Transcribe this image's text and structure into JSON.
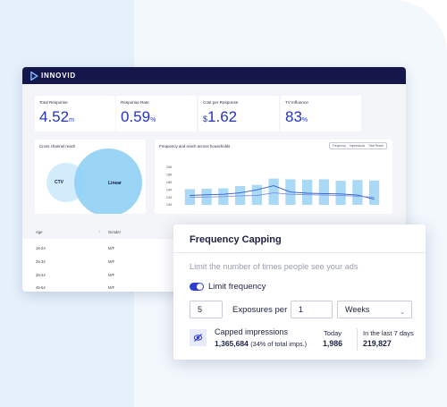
{
  "app": {
    "brand": "INNOVID"
  },
  "kpis": [
    {
      "label": "Total Response",
      "prefix": "",
      "value": "4.52",
      "suffix": "m"
    },
    {
      "label": "Response Rate",
      "prefix": "",
      "value": "0.59",
      "suffix": "%"
    },
    {
      "label": "Cost per Response",
      "prefix": "$",
      "value": "1.62",
      "suffix": ""
    },
    {
      "label": "TV Influence",
      "prefix": "",
      "value": "83",
      "suffix": "%"
    }
  ],
  "venn": {
    "title": "Cross channel reach",
    "left_label": "CTV",
    "right_label": "Linear"
  },
  "freq_chart": {
    "title": "Frequency and reach across households",
    "legend": [
      "Frequency",
      "Impressions",
      "Total Reach"
    ]
  },
  "chart_data": {
    "type": "bar",
    "title": "Frequency and reach across households",
    "y_ticks": [
      "20M",
      "18M",
      "16M",
      "14M",
      "12M",
      "10M"
    ],
    "ylim": [
      10,
      20
    ],
    "series": [
      {
        "name": "Impressions",
        "type": "bar",
        "values": [
          14.2,
          14.3,
          14.4,
          15.0,
          15.3,
          17.0,
          16.8,
          16.7,
          16.8,
          16.4,
          16.6,
          16.5
        ]
      },
      {
        "name": "Frequency",
        "type": "line",
        "values": [
          12.5,
          12.7,
          12.8,
          13.2,
          14.0,
          15.1,
          13.4,
          13.1,
          13.0,
          12.9,
          12.6,
          11.5
        ]
      },
      {
        "name": "Total Reach",
        "type": "line",
        "values": [
          12.0,
          12.1,
          12.2,
          12.4,
          12.5,
          13.2,
          12.8,
          12.7,
          12.6,
          12.5,
          12.3,
          12.0
        ]
      }
    ]
  },
  "table": {
    "headers": [
      "Age",
      "Gender"
    ],
    "rows": [
      [
        "18-24",
        "M/F"
      ],
      [
        "25-34",
        "M/F"
      ],
      [
        "35-44",
        "M/F"
      ],
      [
        "45-54",
        "M/F"
      ]
    ]
  },
  "frequency_capping": {
    "title": "Frequency Capping",
    "description": "Limit the number of times people see your ads",
    "toggle_label": "Limit frequency",
    "toggle_on": true,
    "exposures": "5",
    "exposures_label": "Exposures per",
    "period_count": "1",
    "period_unit": "Weeks",
    "capped_title": "Capped impressions",
    "capped_value": "1,365,684",
    "capped_note": "(34% of total imps.)",
    "today_label": "Today",
    "today_value": "1,986",
    "last7_label": "In the last 7 days",
    "last7_value": "219,827"
  },
  "colors": {
    "accent": "#2f3fd0",
    "navy": "#15174a",
    "bar": "#a9d9f5",
    "venn": "#8fd0f5"
  }
}
